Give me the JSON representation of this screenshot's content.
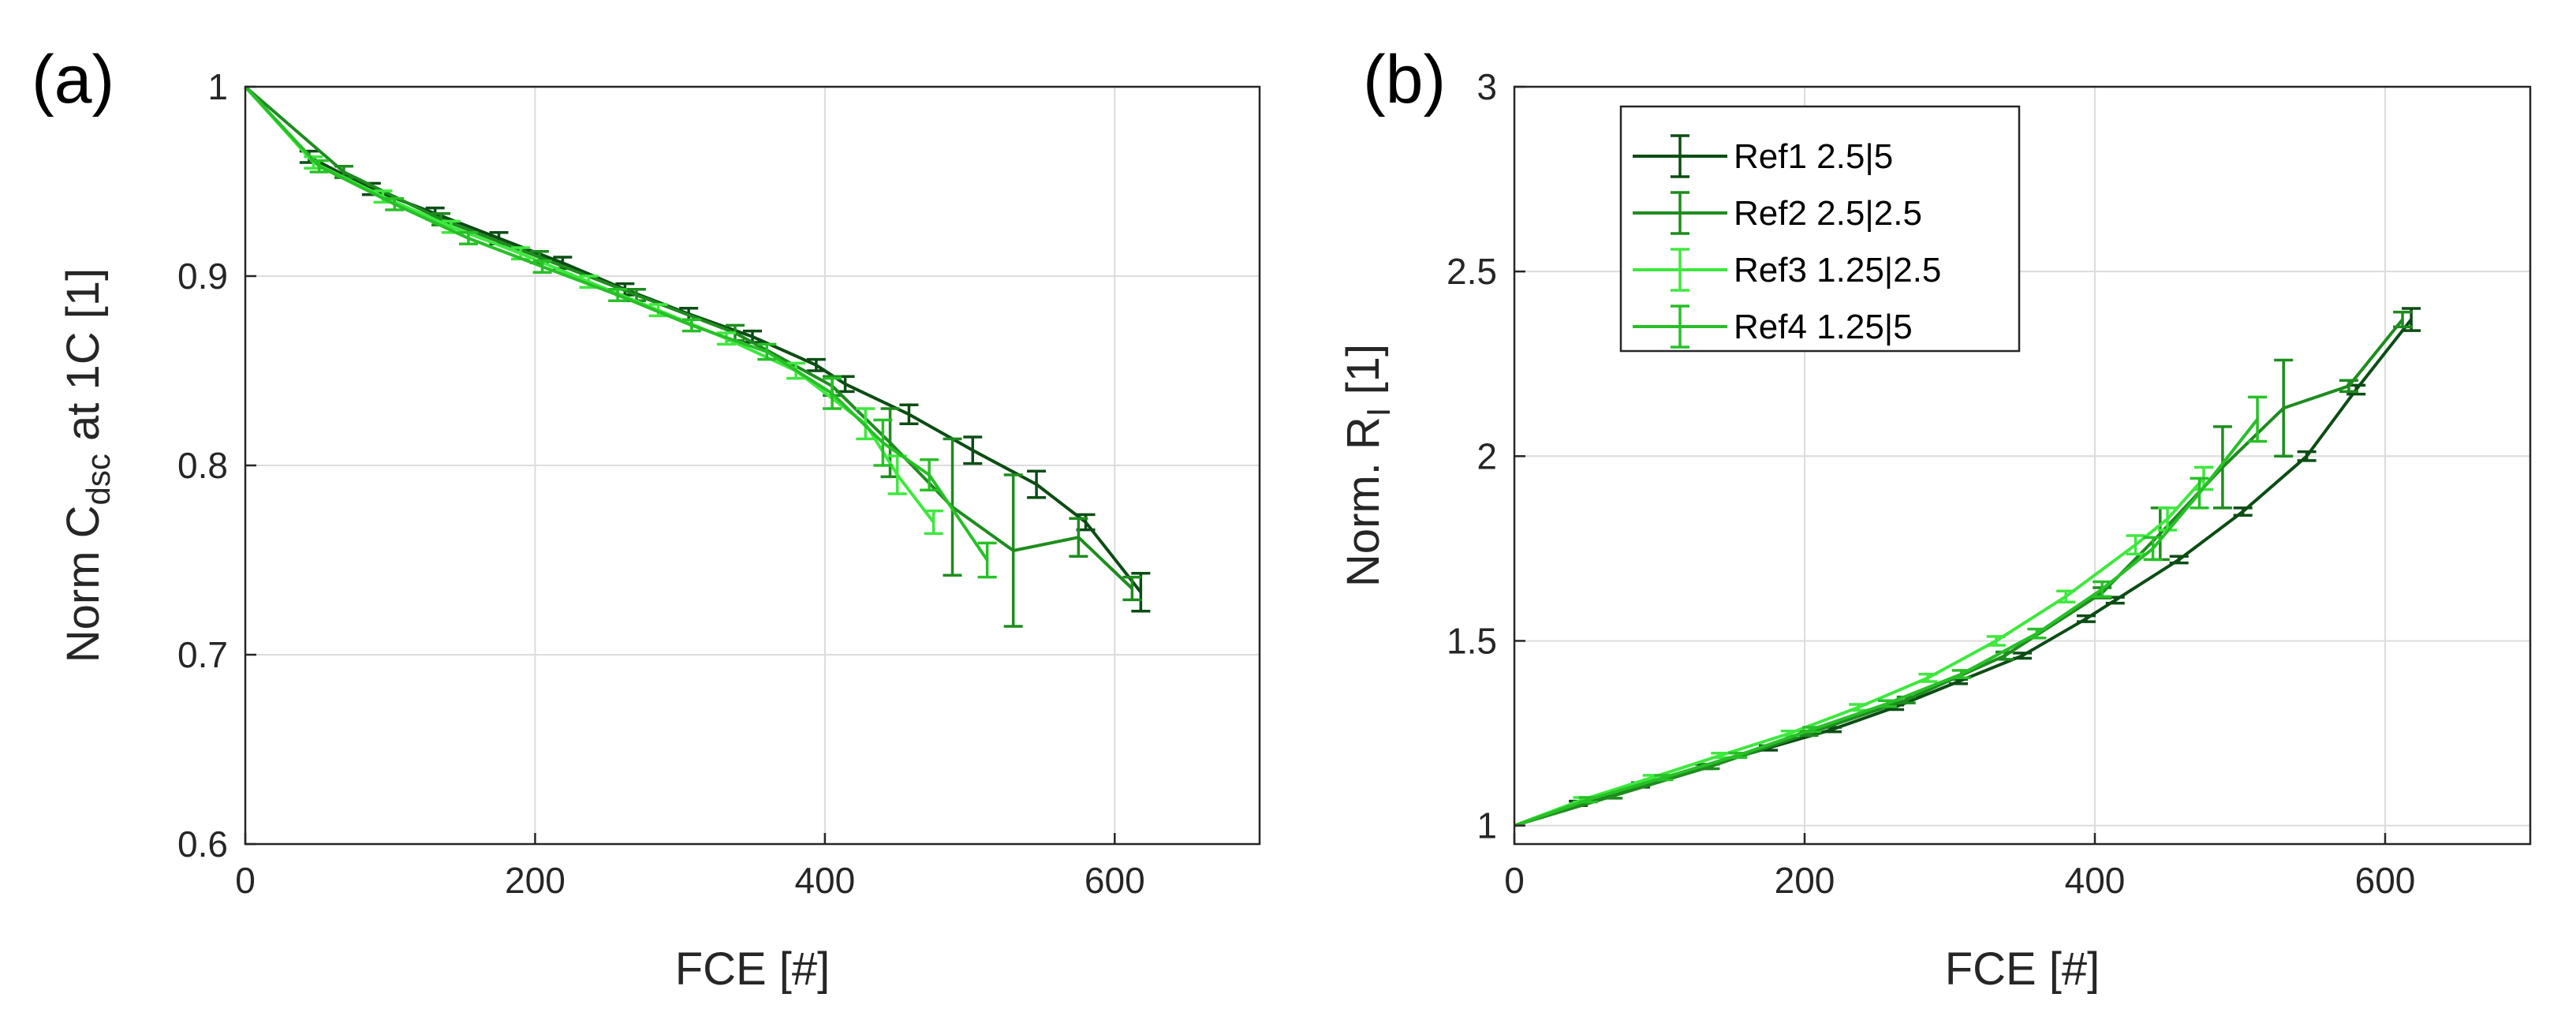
{
  "chart_data": [
    {
      "type": "line",
      "panel_label": "(a)",
      "xlabel": "FCE [#]",
      "ylabel": {
        "main": "Norm C",
        "sub": "dsc",
        "tail": " at 1C [1]"
      },
      "xlim": [
        0,
        700
      ],
      "ylim": [
        0.6,
        1.0
      ],
      "xticks": [
        0,
        200,
        400,
        600
      ],
      "xtick_labels": [
        "0",
        "200",
        "400",
        "600"
      ],
      "yticks": [
        0.6,
        0.7,
        0.8,
        0.9,
        1.0
      ],
      "ytick_labels": [
        "0.6",
        "0.7",
        "0.8",
        "0.9",
        "1"
      ],
      "grid": true,
      "series": [
        {
          "name": "Ref1 2.5|5",
          "color": "#0b4d14",
          "x": [
            0,
            44,
            87,
            131,
            175,
            219,
            262,
            306,
            350,
            394,
            414,
            458,
            502,
            546,
            580,
            618
          ],
          "y": [
            1.0,
            0.963,
            0.946,
            0.933,
            0.92,
            0.907,
            0.893,
            0.88,
            0.868,
            0.853,
            0.843,
            0.827,
            0.808,
            0.79,
            0.77,
            0.733
          ],
          "err": [
            0,
            0.003,
            0.003,
            0.003,
            0.003,
            0.003,
            0.003,
            0.003,
            0.003,
            0.003,
            0.004,
            0.005,
            0.007,
            0.007,
            0.004,
            0.01
          ]
        },
        {
          "name": "Ref2 2.5|2.5",
          "color": "#1e8c1e",
          "x": [
            0,
            68,
            135,
            203,
            270,
            338,
            405,
            445,
            488,
            530,
            575,
            612
          ],
          "y": [
            1.0,
            0.955,
            0.93,
            0.91,
            0.89,
            0.87,
            0.842,
            0.812,
            0.778,
            0.755,
            0.762,
            0.735
          ],
          "err": [
            0,
            0.003,
            0.003,
            0.003,
            0.003,
            0.004,
            0.005,
            0.018,
            0.036,
            0.04,
            0.01,
            0.006
          ]
        },
        {
          "name": "Ref3 1.25|2.5",
          "color": "#3ee83e",
          "x": [
            0,
            47,
            95,
            142,
            190,
            237,
            285,
            332,
            380,
            428,
            450,
            475
          ],
          "y": [
            1.0,
            0.96,
            0.942,
            0.926,
            0.912,
            0.897,
            0.882,
            0.867,
            0.85,
            0.822,
            0.795,
            0.77
          ],
          "err": [
            0,
            0.003,
            0.003,
            0.003,
            0.003,
            0.003,
            0.003,
            0.003,
            0.004,
            0.008,
            0.01,
            0.006
          ]
        },
        {
          "name": "Ref4 1.25|5",
          "color": "#27c027",
          "x": [
            0,
            51,
            103,
            154,
            205,
            257,
            308,
            360,
            405,
            440,
            472,
            512
          ],
          "y": [
            1.0,
            0.958,
            0.938,
            0.92,
            0.905,
            0.89,
            0.874,
            0.86,
            0.838,
            0.812,
            0.795,
            0.75
          ],
          "err": [
            0,
            0.003,
            0.003,
            0.003,
            0.003,
            0.003,
            0.003,
            0.004,
            0.008,
            0.012,
            0.008,
            0.009
          ]
        }
      ]
    },
    {
      "type": "line",
      "panel_label": "(b)",
      "xlabel": "FCE [#]",
      "ylabel": {
        "main": "Norm. R",
        "sub": "I",
        "tail": " [1]"
      },
      "xlim": [
        0,
        700
      ],
      "ylim": [
        0.95,
        3.0
      ],
      "xticks": [
        0,
        200,
        400,
        600
      ],
      "xtick_labels": [
        "0",
        "200",
        "400",
        "600"
      ],
      "yticks": [
        1,
        1.5,
        2,
        2.5,
        3
      ],
      "ytick_labels": [
        "1",
        "1.5",
        "2",
        "2.5",
        "3"
      ],
      "grid": true,
      "legend": {
        "position": "top-left",
        "entries": [
          "Ref1 2.5|5",
          "Ref2 2.5|2.5",
          "Ref3 1.25|2.5",
          "Ref4 1.25|5"
        ]
      },
      "series": [
        {
          "name": "Ref1 2.5|5",
          "color": "#0b4d14",
          "x": [
            0,
            44,
            87,
            131,
            175,
            219,
            262,
            306,
            350,
            394,
            414,
            458,
            502,
            546,
            580,
            618
          ],
          "y": [
            1.0,
            1.06,
            1.11,
            1.16,
            1.21,
            1.26,
            1.32,
            1.39,
            1.46,
            1.56,
            1.61,
            1.72,
            1.85,
            2.0,
            2.18,
            2.37
          ],
          "err": [
            0,
            0.006,
            0.006,
            0.006,
            0.006,
            0.006,
            0.006,
            0.006,
            0.007,
            0.008,
            0.008,
            0.009,
            0.01,
            0.012,
            0.012,
            0.03
          ]
        },
        {
          "name": "Ref2 2.5|2.5",
          "color": "#1e8c1e",
          "x": [
            0,
            68,
            135,
            203,
            270,
            338,
            405,
            445,
            488,
            530,
            575,
            612
          ],
          "y": [
            1.0,
            1.08,
            1.16,
            1.25,
            1.34,
            1.46,
            1.63,
            1.79,
            1.97,
            2.13,
            2.19,
            2.37
          ],
          "err": [
            0,
            0.006,
            0.006,
            0.006,
            0.008,
            0.01,
            0.014,
            0.07,
            0.11,
            0.13,
            0.015,
            0.02
          ]
        },
        {
          "name": "Ref3 1.25|2.5",
          "color": "#3ee83e",
          "x": [
            0,
            47,
            95,
            142,
            190,
            237,
            285,
            332,
            380,
            428,
            450,
            475
          ],
          "y": [
            1.0,
            1.07,
            1.13,
            1.19,
            1.25,
            1.32,
            1.4,
            1.5,
            1.62,
            1.76,
            1.83,
            1.94
          ],
          "err": [
            0,
            0.006,
            0.006,
            0.006,
            0.006,
            0.008,
            0.01,
            0.012,
            0.015,
            0.025,
            0.03,
            0.03
          ]
        },
        {
          "name": "Ref4 1.25|5",
          "color": "#27c027",
          "x": [
            0,
            51,
            103,
            154,
            205,
            257,
            308,
            360,
            405,
            440,
            472,
            512
          ],
          "y": [
            1.0,
            1.07,
            1.13,
            1.19,
            1.26,
            1.33,
            1.41,
            1.52,
            1.64,
            1.75,
            1.9,
            2.1
          ],
          "err": [
            0,
            0.006,
            0.006,
            0.006,
            0.006,
            0.008,
            0.01,
            0.012,
            0.02,
            0.03,
            0.04,
            0.06
          ]
        }
      ]
    }
  ]
}
